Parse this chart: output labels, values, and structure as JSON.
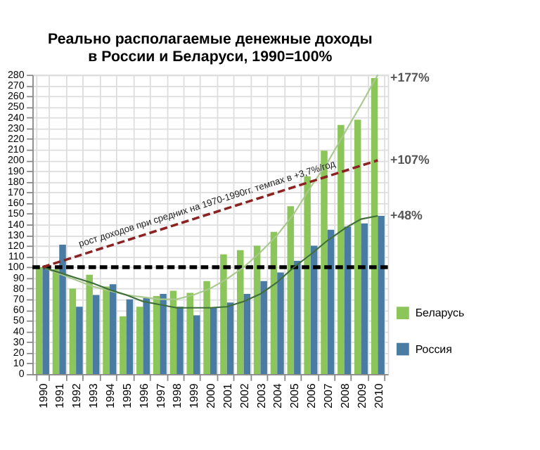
{
  "chart_data": {
    "type": "bar",
    "title": "Реально располагаемые денежные доходы\nв России и Беларуси, 1990=100%",
    "categories": [
      "1990",
      "1991",
      "1992",
      "1993",
      "1994",
      "1995",
      "1996",
      "1997",
      "1998",
      "1999",
      "2000",
      "2001",
      "2002",
      "2003",
      "2004",
      "2005",
      "2006",
      "2007",
      "2008",
      "2009",
      "2010"
    ],
    "series": [
      {
        "name": "Беларусь",
        "color": "#8cc65a",
        "values": [
          100,
          98,
          80,
          93,
          82,
          54,
          63,
          73,
          78,
          76,
          87,
          112,
          116,
          120,
          133,
          157,
          185,
          209,
          233,
          238,
          277
        ]
      },
      {
        "name": "Россия",
        "color": "#4a7ca3",
        "values": [
          100,
          121,
          63,
          74,
          84,
          70,
          71,
          75,
          63,
          55,
          62,
          67,
          75,
          87,
          95,
          106,
          120,
          135,
          138,
          141,
          148
        ]
      },
      {
        "type": "line",
        "color": "#a9c88e",
        "values": [
          100,
          94,
          88,
          82,
          78,
          74,
          72,
          70,
          70,
          74,
          80,
          89,
          100,
          114,
          130,
          150,
          175,
          198,
          225,
          252,
          280
        ]
      },
      {
        "type": "line",
        "color": "#3f6e3a",
        "values": [
          100,
          95,
          90,
          85,
          79,
          74,
          68,
          65,
          62,
          62,
          62,
          63,
          68,
          75,
          86,
          100,
          112,
          125,
          136,
          145,
          148
        ]
      },
      {
        "type": "line",
        "color": "#8b2323",
        "line_style": "dashed",
        "values": [
          100,
          105,
          110,
          115,
          120,
          125,
          130,
          135,
          140,
          145,
          150,
          155,
          160,
          165,
          170,
          175,
          180,
          185,
          190,
          195,
          200
        ]
      }
    ],
    "ylim": [
      0,
      280
    ],
    "yticks": [
      0,
      10,
      20,
      30,
      40,
      50,
      60,
      70,
      80,
      90,
      100,
      110,
      120,
      130,
      140,
      150,
      160,
      170,
      180,
      190,
      200,
      210,
      220,
      230,
      240,
      250,
      260,
      270,
      280
    ],
    "grid": true,
    "legend": "bottom right",
    "ref_lines": [
      {
        "axis": "y",
        "value": 100,
        "color": "#000000",
        "line_style": "dashed"
      }
    ],
    "annotations": [
      "рост доходов при средних на 1970-1990гг. темпах в +3,7%/год",
      {
        "text": "+177%",
        "x": "2010",
        "y": 277
      },
      {
        "text": "+107%",
        "x": "2010",
        "y": 200
      },
      {
        "text": "+48%",
        "x": "2010",
        "y": 148
      }
    ]
  }
}
